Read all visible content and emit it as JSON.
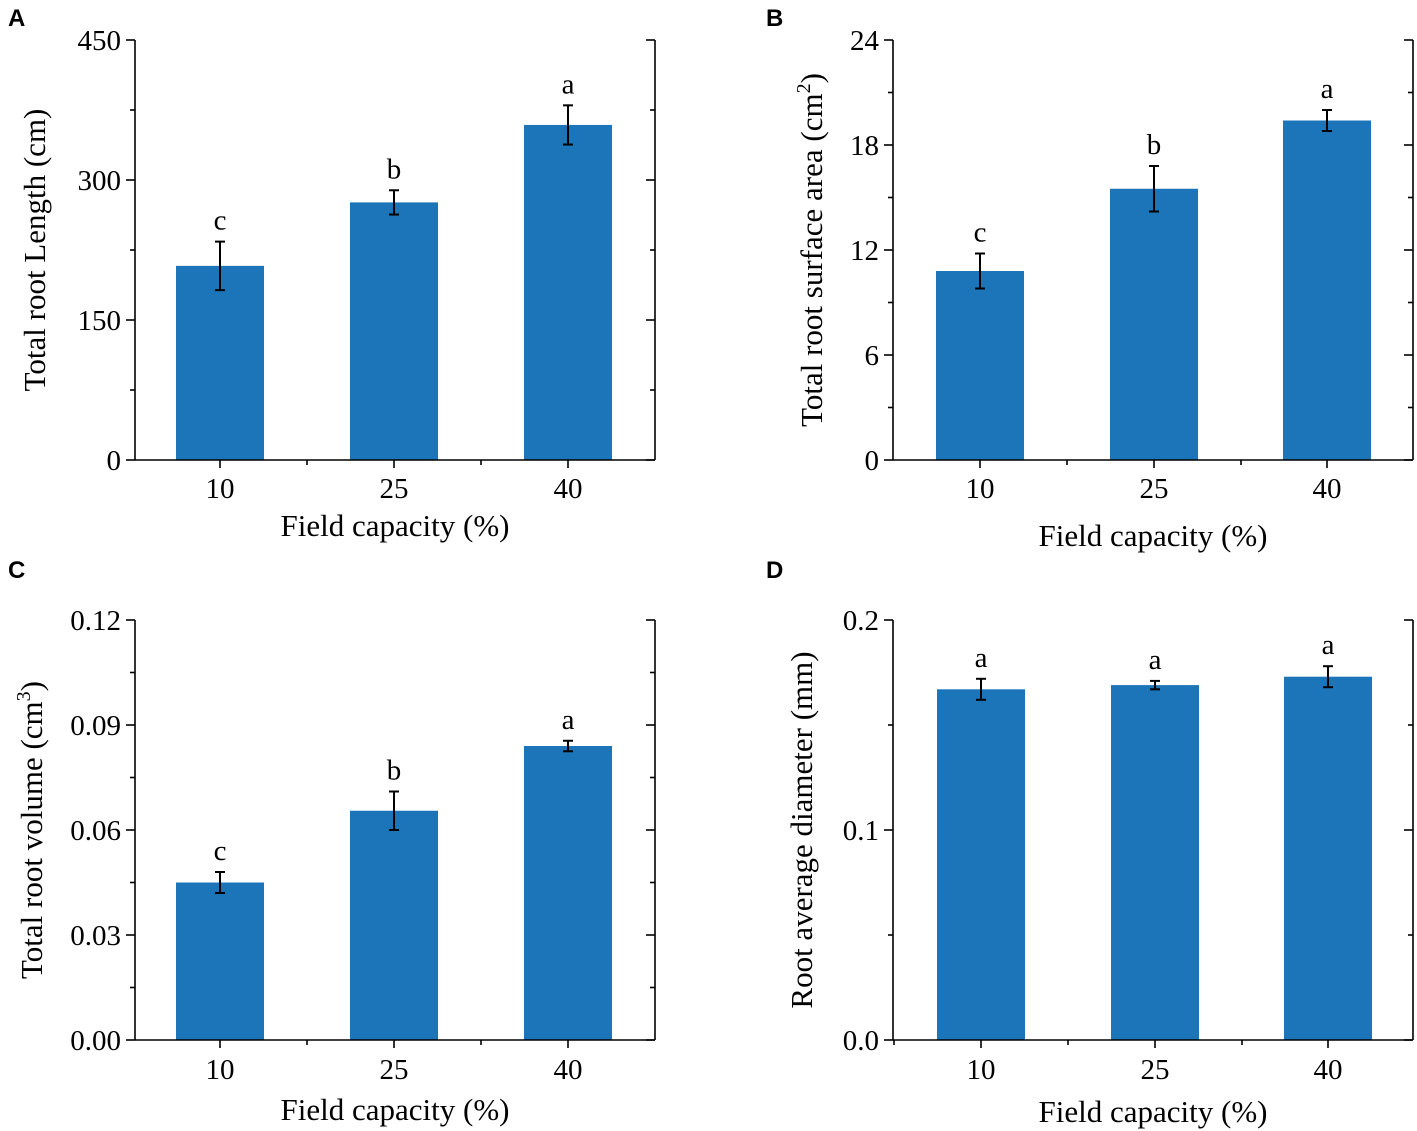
{
  "colors": {
    "bar": "#1b75b8",
    "axis": "#000000"
  },
  "chart_data": [
    {
      "panel": "A",
      "type": "bar",
      "categories": [
        "10",
        "25",
        "40"
      ],
      "values": [
        208,
        276,
        359
      ],
      "errors": [
        26,
        13,
        21
      ],
      "significance": [
        "c",
        "b",
        "a"
      ],
      "ylim": [
        0,
        450
      ],
      "yticks": [
        "0",
        "150",
        "300",
        "450"
      ],
      "ylabel": "Total root Length (cm)",
      "ylabel_sup": "",
      "ylabel_tail": "",
      "xlabel": "Field capacity (%)"
    },
    {
      "panel": "B",
      "type": "bar",
      "categories": [
        "10",
        "25",
        "40"
      ],
      "values": [
        10.8,
        15.5,
        19.4
      ],
      "errors": [
        1.0,
        1.3,
        0.6
      ],
      "significance": [
        "c",
        "b",
        "a"
      ],
      "ylim": [
        0,
        24
      ],
      "yticks": [
        "0",
        "6",
        "12",
        "18",
        "24"
      ],
      "ylabel": "Total root surface area (cm",
      "ylabel_sup": "2",
      "ylabel_tail": ")",
      "xlabel": "Field capacity (%)"
    },
    {
      "panel": "C",
      "type": "bar",
      "categories": [
        "10",
        "25",
        "40"
      ],
      "values": [
        0.045,
        0.0655,
        0.084
      ],
      "errors": [
        0.003,
        0.0055,
        0.0015
      ],
      "significance": [
        "c",
        "b",
        "a"
      ],
      "ylim": [
        0,
        0.12
      ],
      "yticks": [
        "0.00",
        "0.03",
        "0.06",
        "0.09",
        "0.12"
      ],
      "ylabel": "Total root volume (cm",
      "ylabel_sup": "3",
      "ylabel_tail": ")",
      "xlabel": "Field capacity (%)"
    },
    {
      "panel": "D",
      "type": "bar",
      "categories": [
        "10",
        "25",
        "40"
      ],
      "values": [
        0.167,
        0.169,
        0.173
      ],
      "errors": [
        0.005,
        0.002,
        0.005
      ],
      "significance": [
        "a",
        "a",
        "a"
      ],
      "ylim": [
        0,
        0.2
      ],
      "yticks": [
        "0.0",
        "0.1",
        "0.2"
      ],
      "ylabel": "Root  average diameter (mm)",
      "ylabel_sup": "",
      "ylabel_tail": "",
      "xlabel": "Field capacity (%)"
    }
  ]
}
